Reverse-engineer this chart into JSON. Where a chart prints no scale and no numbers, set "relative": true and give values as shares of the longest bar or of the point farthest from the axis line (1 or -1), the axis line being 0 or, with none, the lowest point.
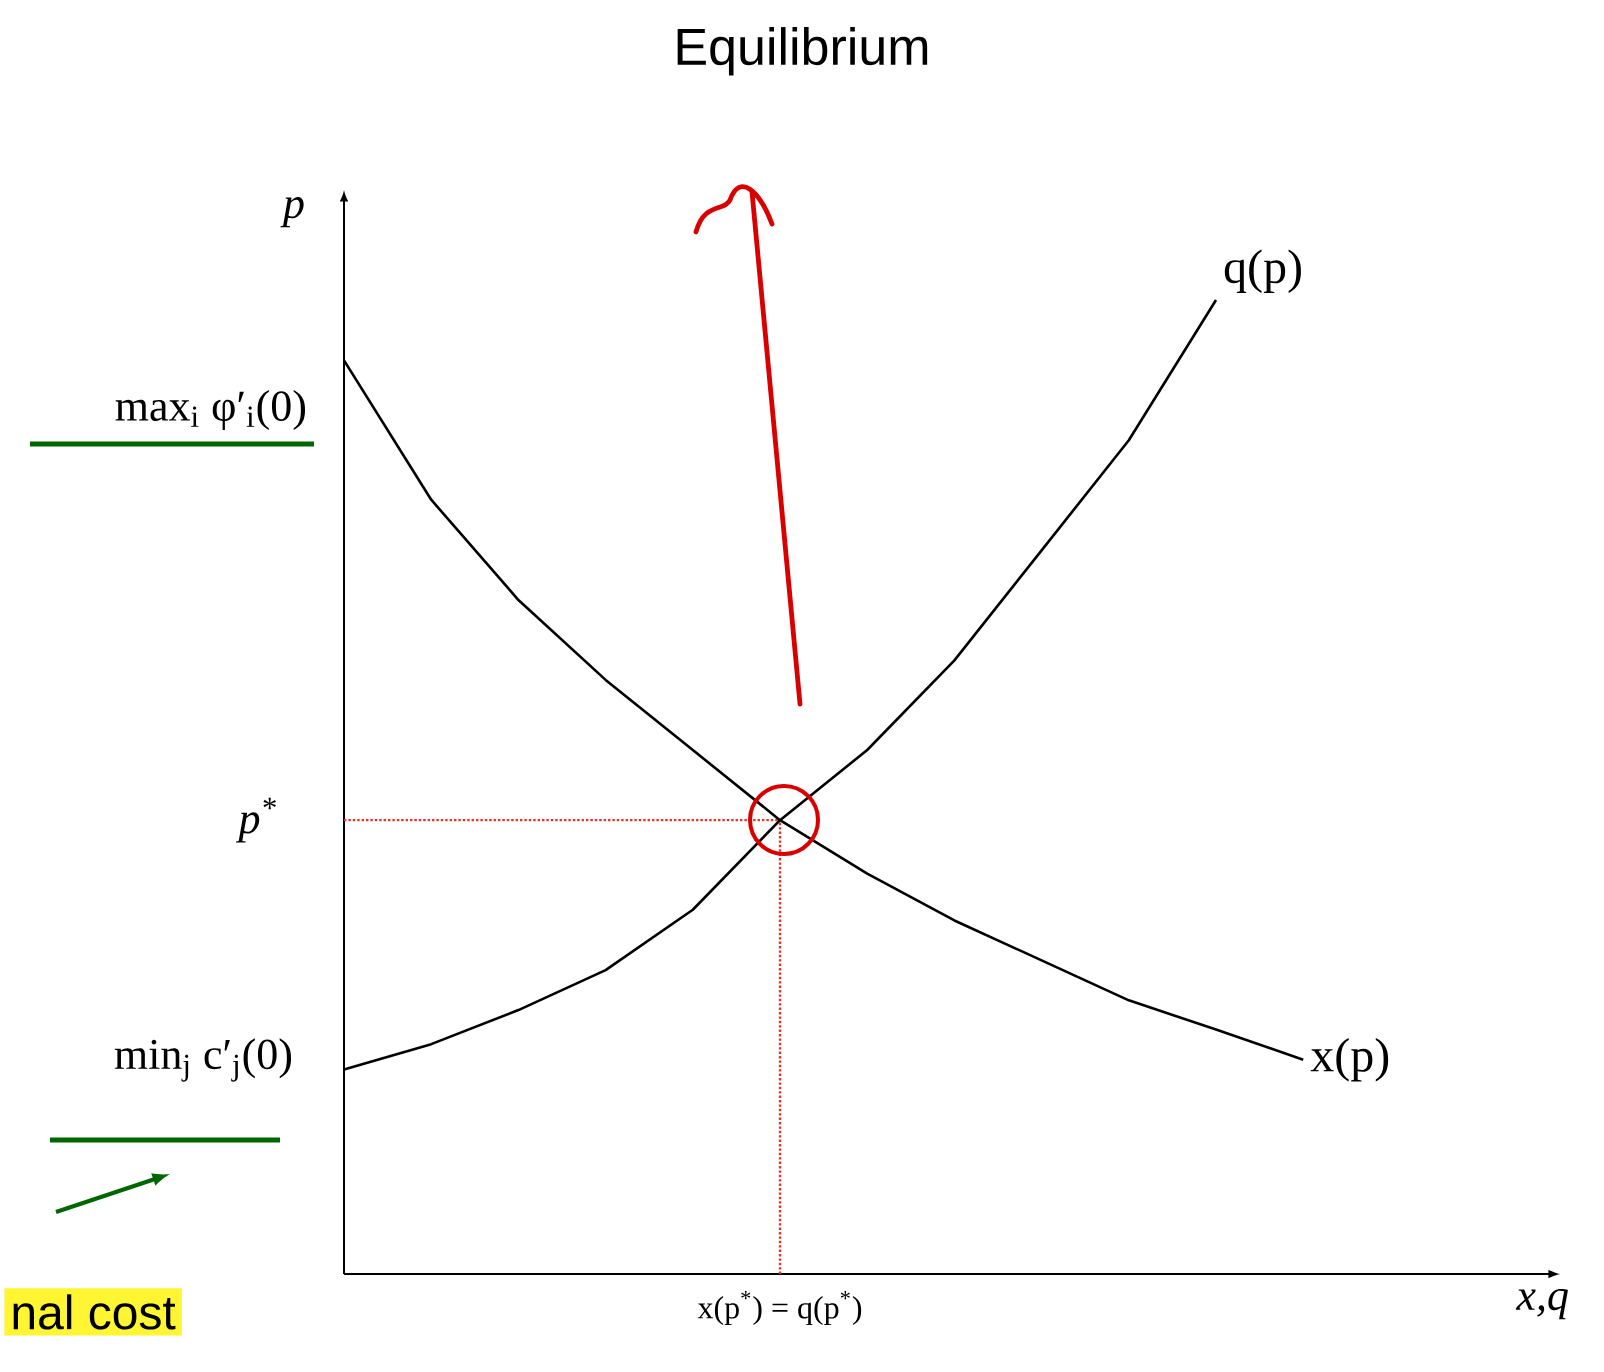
{
  "chart_data": {
    "type": "line",
    "relative": true,
    "title": "Equilibrium",
    "xlabel": "x,q",
    "ylabel": "p",
    "categories": [
      null,
      null,
      null,
      null,
      null,
      null,
      null,
      null,
      null,
      null,
      null,
      null
    ],
    "series": [
      {
        "name": "q(p)",
        "color": "#000000",
        "values": [
          0.21,
          0.236,
          0.271,
          0.312,
          0.374,
          0.466,
          0.538,
          0.63,
          0.743,
          0.856,
          1,
          null
        ]
      },
      {
        "name": "x(p)",
        "color": "#000000",
        "values": [
          0.938,
          0.795,
          0.692,
          0.61,
          0.538,
          0.466,
          0.411,
          0.363,
          0.322,
          0.281,
          0.251,
          0.22
        ]
      }
    ],
    "ref_lines": [
      {
        "axis": "y",
        "value": 0.466,
        "label": "p$^{*}$",
        "color": "#e8322a",
        "line_style": "dotted"
      }
    ],
    "annotations": [
      "max$_{i}$ φ′$_{i}$(0)",
      "min$_{j}$ c′$_{j}$(0)",
      "x(p$^{*}$) = q(p$^{*}$)",
      "nal cost"
    ]
  }
}
